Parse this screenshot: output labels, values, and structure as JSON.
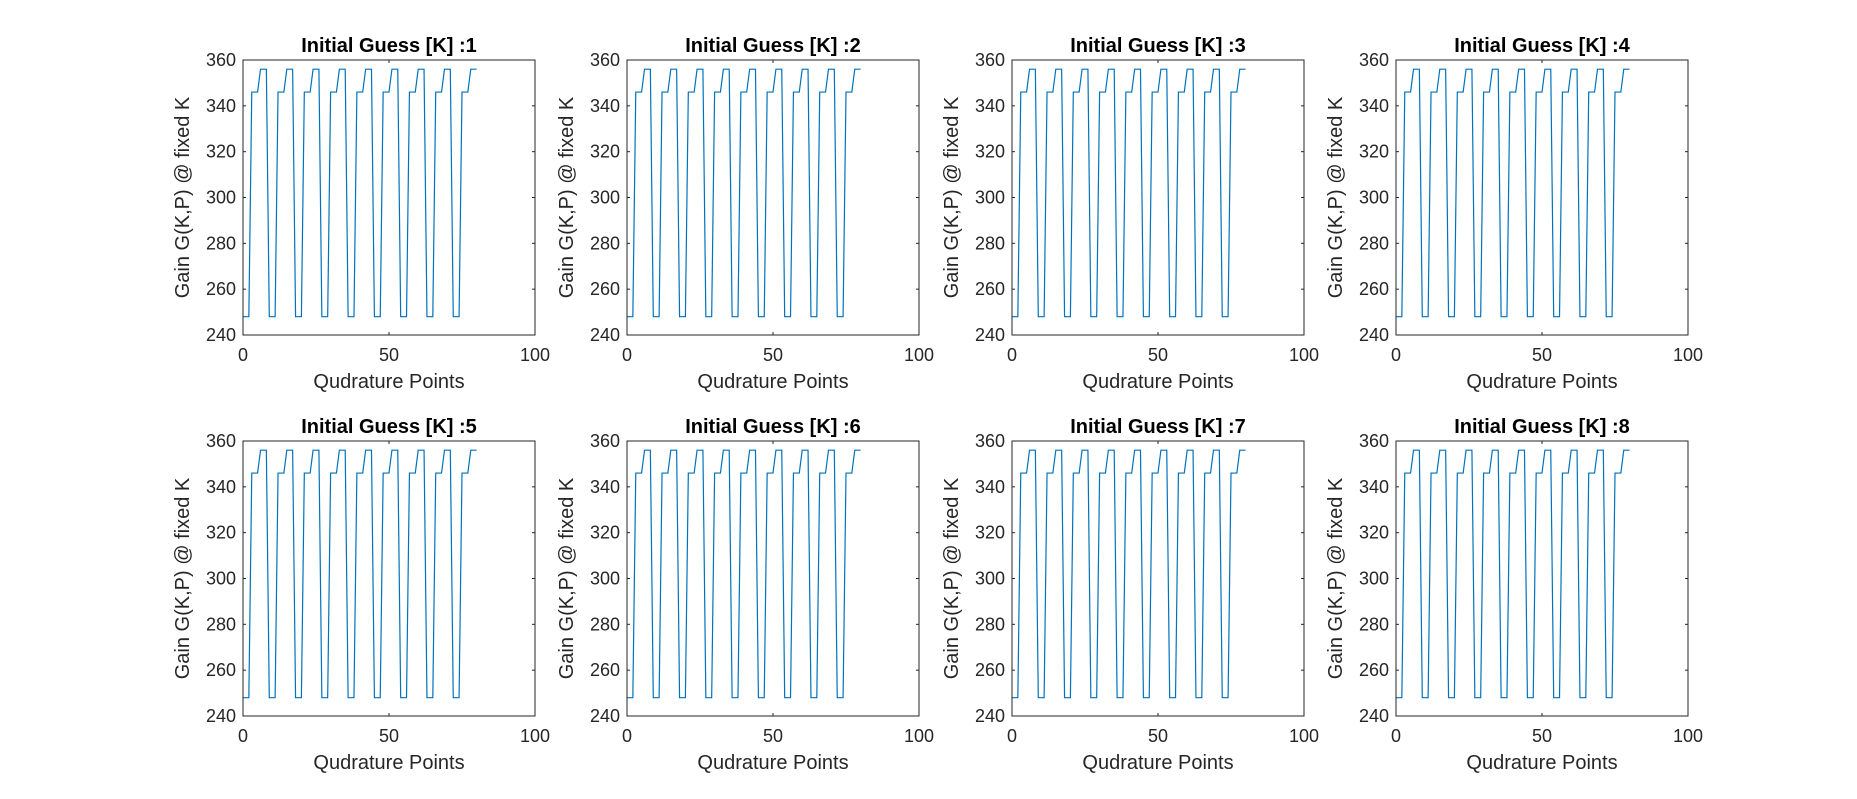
{
  "chart_data": [
    {
      "type": "line",
      "title": "Initial Guess [K] :1",
      "xlabel": "Qudrature Points",
      "ylabel": "Gain G(K,P) @ fixed K",
      "xlim": [
        0,
        100
      ],
      "ylim": [
        240,
        360
      ],
      "xticks": [
        0,
        50,
        100
      ],
      "yticks": [
        240,
        260,
        280,
        300,
        320,
        340,
        360
      ],
      "grid": false,
      "series": [
        {
          "values_pattern": [
            248,
            248,
            248,
            346,
            346,
            346,
            356,
            356,
            356
          ],
          "repeats": 9,
          "x_start": 0,
          "x_step": 1,
          "color": "#0072BD"
        }
      ]
    },
    {
      "type": "line",
      "title": "Initial Guess [K] :2",
      "xlabel": "Qudrature Points",
      "ylabel": "Gain G(K,P) @ fixed K",
      "xlim": [
        0,
        100
      ],
      "ylim": [
        240,
        360
      ],
      "xticks": [
        0,
        50,
        100
      ],
      "yticks": [
        240,
        260,
        280,
        300,
        320,
        340,
        360
      ],
      "grid": false,
      "series": [
        {
          "values_pattern": [
            248,
            248,
            248,
            346,
            346,
            346,
            356,
            356,
            356
          ],
          "repeats": 9,
          "x_start": 0,
          "x_step": 1,
          "color": "#0072BD"
        }
      ]
    },
    {
      "type": "line",
      "title": "Initial Guess [K] :3",
      "xlabel": "Qudrature Points",
      "ylabel": "Gain G(K,P) @ fixed K",
      "xlim": [
        0,
        100
      ],
      "ylim": [
        240,
        360
      ],
      "xticks": [
        0,
        50,
        100
      ],
      "yticks": [
        240,
        260,
        280,
        300,
        320,
        340,
        360
      ],
      "grid": false,
      "series": [
        {
          "values_pattern": [
            248,
            248,
            248,
            346,
            346,
            346,
            356,
            356,
            356
          ],
          "repeats": 9,
          "x_start": 0,
          "x_step": 1,
          "color": "#0072BD"
        }
      ]
    },
    {
      "type": "line",
      "title": "Initial Guess [K] :4",
      "xlabel": "Qudrature Points",
      "ylabel": "Gain G(K,P) @ fixed K",
      "xlim": [
        0,
        100
      ],
      "ylim": [
        240,
        360
      ],
      "xticks": [
        0,
        50,
        100
      ],
      "yticks": [
        240,
        260,
        280,
        300,
        320,
        340,
        360
      ],
      "grid": false,
      "series": [
        {
          "values_pattern": [
            248,
            248,
            248,
            346,
            346,
            346,
            356,
            356,
            356
          ],
          "repeats": 9,
          "x_start": 0,
          "x_step": 1,
          "color": "#0072BD"
        }
      ]
    },
    {
      "type": "line",
      "title": "Initial Guess [K] :5",
      "xlabel": "Qudrature Points",
      "ylabel": "Gain G(K,P) @ fixed K",
      "xlim": [
        0,
        100
      ],
      "ylim": [
        240,
        360
      ],
      "xticks": [
        0,
        50,
        100
      ],
      "yticks": [
        240,
        260,
        280,
        300,
        320,
        340,
        360
      ],
      "grid": false,
      "series": [
        {
          "values_pattern": [
            248,
            248,
            248,
            346,
            346,
            346,
            356,
            356,
            356
          ],
          "repeats": 9,
          "x_start": 0,
          "x_step": 1,
          "color": "#0072BD"
        }
      ]
    },
    {
      "type": "line",
      "title": "Initial Guess [K] :6",
      "xlabel": "Qudrature Points",
      "ylabel": "Gain G(K,P) @ fixed K",
      "xlim": [
        0,
        100
      ],
      "ylim": [
        240,
        360
      ],
      "xticks": [
        0,
        50,
        100
      ],
      "yticks": [
        240,
        260,
        280,
        300,
        320,
        340,
        360
      ],
      "grid": false,
      "series": [
        {
          "values_pattern": [
            248,
            248,
            248,
            346,
            346,
            346,
            356,
            356,
            356
          ],
          "repeats": 9,
          "x_start": 0,
          "x_step": 1,
          "color": "#0072BD"
        }
      ]
    },
    {
      "type": "line",
      "title": "Initial Guess [K] :7",
      "xlabel": "Qudrature Points",
      "ylabel": "Gain G(K,P) @ fixed K",
      "xlim": [
        0,
        100
      ],
      "ylim": [
        240,
        360
      ],
      "xticks": [
        0,
        50,
        100
      ],
      "yticks": [
        240,
        260,
        280,
        300,
        320,
        340,
        360
      ],
      "grid": false,
      "series": [
        {
          "values_pattern": [
            248,
            248,
            248,
            346,
            346,
            346,
            356,
            356,
            356
          ],
          "repeats": 9,
          "x_start": 0,
          "x_step": 1,
          "color": "#0072BD"
        }
      ]
    },
    {
      "type": "line",
      "title": "Initial Guess [K] :8",
      "xlabel": "Qudrature Points",
      "ylabel": "Gain G(K,P) @ fixed K",
      "xlim": [
        0,
        100
      ],
      "ylim": [
        240,
        360
      ],
      "xticks": [
        0,
        50,
        100
      ],
      "yticks": [
        240,
        260,
        280,
        300,
        320,
        340,
        360
      ],
      "grid": false,
      "series": [
        {
          "values_pattern": [
            248,
            248,
            248,
            346,
            346,
            346,
            356,
            356,
            356
          ],
          "repeats": 9,
          "x_start": 0,
          "x_step": 1,
          "color": "#0072BD"
        }
      ]
    }
  ]
}
